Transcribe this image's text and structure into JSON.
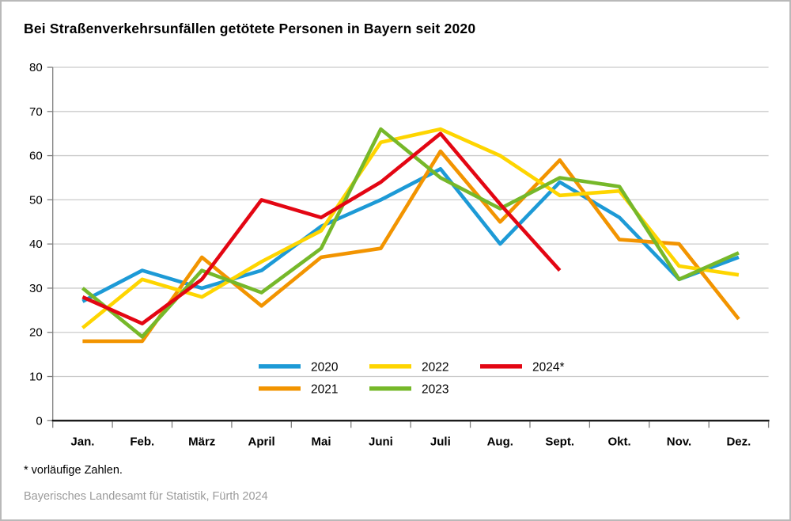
{
  "title": "Bei Straßenverkehrsunfällen getötete Personen in Bayern seit 2020",
  "footnote": "* vorläufige Zahlen.",
  "source": "Bayerisches Landesamt für Statistik, Fürth 2024",
  "chart_data": {
    "type": "line",
    "title": "Bei Straßenverkehrsunfällen getötete Personen in Bayern seit 2020",
    "categories": [
      "Jan.",
      "Feb.",
      "März",
      "April",
      "Mai",
      "Juni",
      "Juli",
      "Aug.",
      "Sept.",
      "Okt.",
      "Nov.",
      "Dez."
    ],
    "series": [
      {
        "name": "2020",
        "color": "#1d9ad6",
        "values": [
          27,
          34,
          30,
          34,
          44,
          50,
          57,
          40,
          54,
          46,
          32,
          37
        ]
      },
      {
        "name": "2021",
        "color": "#f29400",
        "values": [
          18,
          18,
          37,
          26,
          37,
          39,
          61,
          45,
          59,
          41,
          40,
          23
        ]
      },
      {
        "name": "2022",
        "color": "#fed500",
        "values": [
          21,
          32,
          28,
          36,
          43,
          63,
          66,
          60,
          51,
          52,
          35,
          33
        ]
      },
      {
        "name": "2023",
        "color": "#76b82a",
        "values": [
          30,
          19,
          34,
          29,
          39,
          66,
          55,
          48,
          55,
          53,
          32,
          38
        ]
      },
      {
        "name": "2024*",
        "color": "#e30613",
        "values": [
          28,
          22,
          32,
          50,
          46,
          54,
          65,
          49,
          34
        ]
      }
    ],
    "xlabel": "",
    "ylabel": "",
    "ylim": [
      0,
      80
    ],
    "ytick_step": 10,
    "grid": true,
    "legend_position": "bottom-center-inside",
    "legend_rows": [
      [
        "2020",
        "2022",
        "2024*"
      ],
      [
        "2021",
        "2023"
      ]
    ]
  }
}
